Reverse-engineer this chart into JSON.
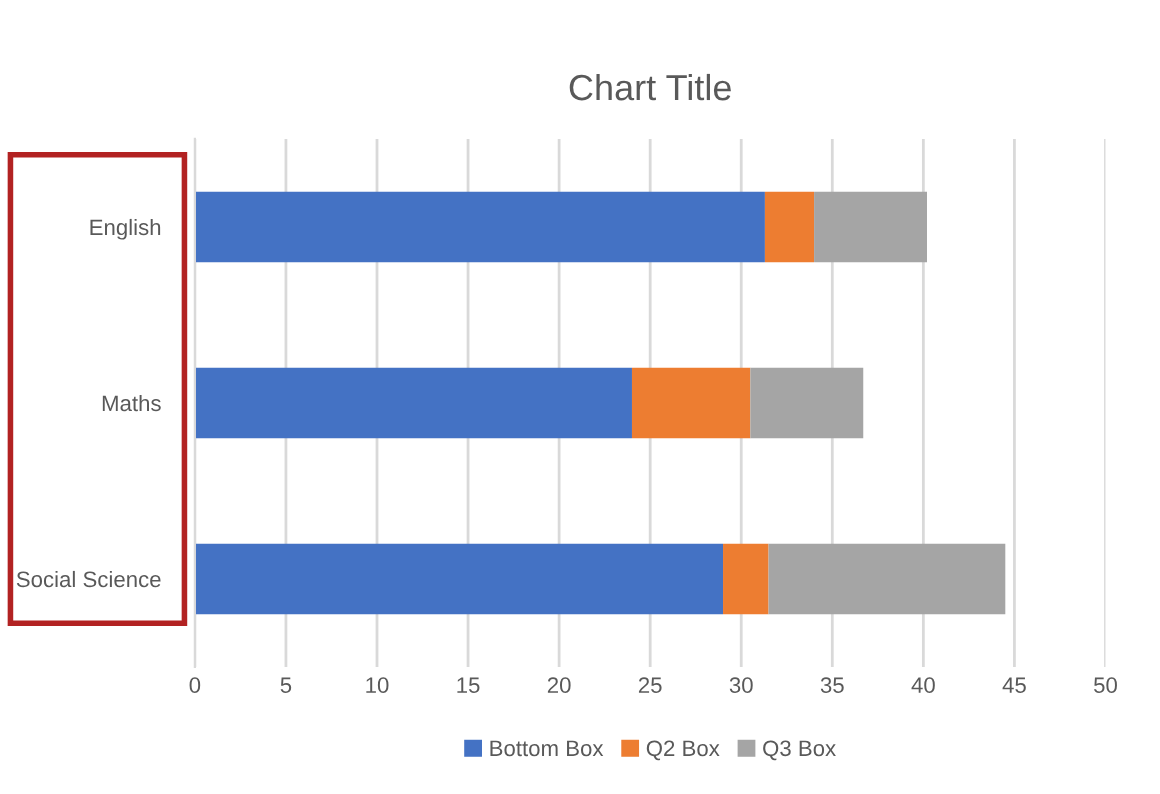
{
  "chart_data": {
    "type": "bar",
    "orientation": "horizontal",
    "stacked": true,
    "title": "Chart Title",
    "categories": [
      "English",
      "Maths",
      "Social Science"
    ],
    "series": [
      {
        "name": "Bottom Box",
        "color": "#4472c4",
        "values": [
          31.3,
          24.0,
          29.0
        ]
      },
      {
        "name": "Q2 Box",
        "color": "#ed7d31",
        "values": [
          2.7,
          6.5,
          2.5
        ]
      },
      {
        "name": "Q3 Box",
        "color": "#a5a5a5",
        "values": [
          6.2,
          6.2,
          13.0
        ]
      }
    ],
    "xlim": [
      0,
      50
    ],
    "xticks": [
      0,
      5,
      10,
      15,
      20,
      25,
      30,
      35,
      40,
      45,
      50
    ],
    "grid": "x",
    "legend": "bottom"
  }
}
